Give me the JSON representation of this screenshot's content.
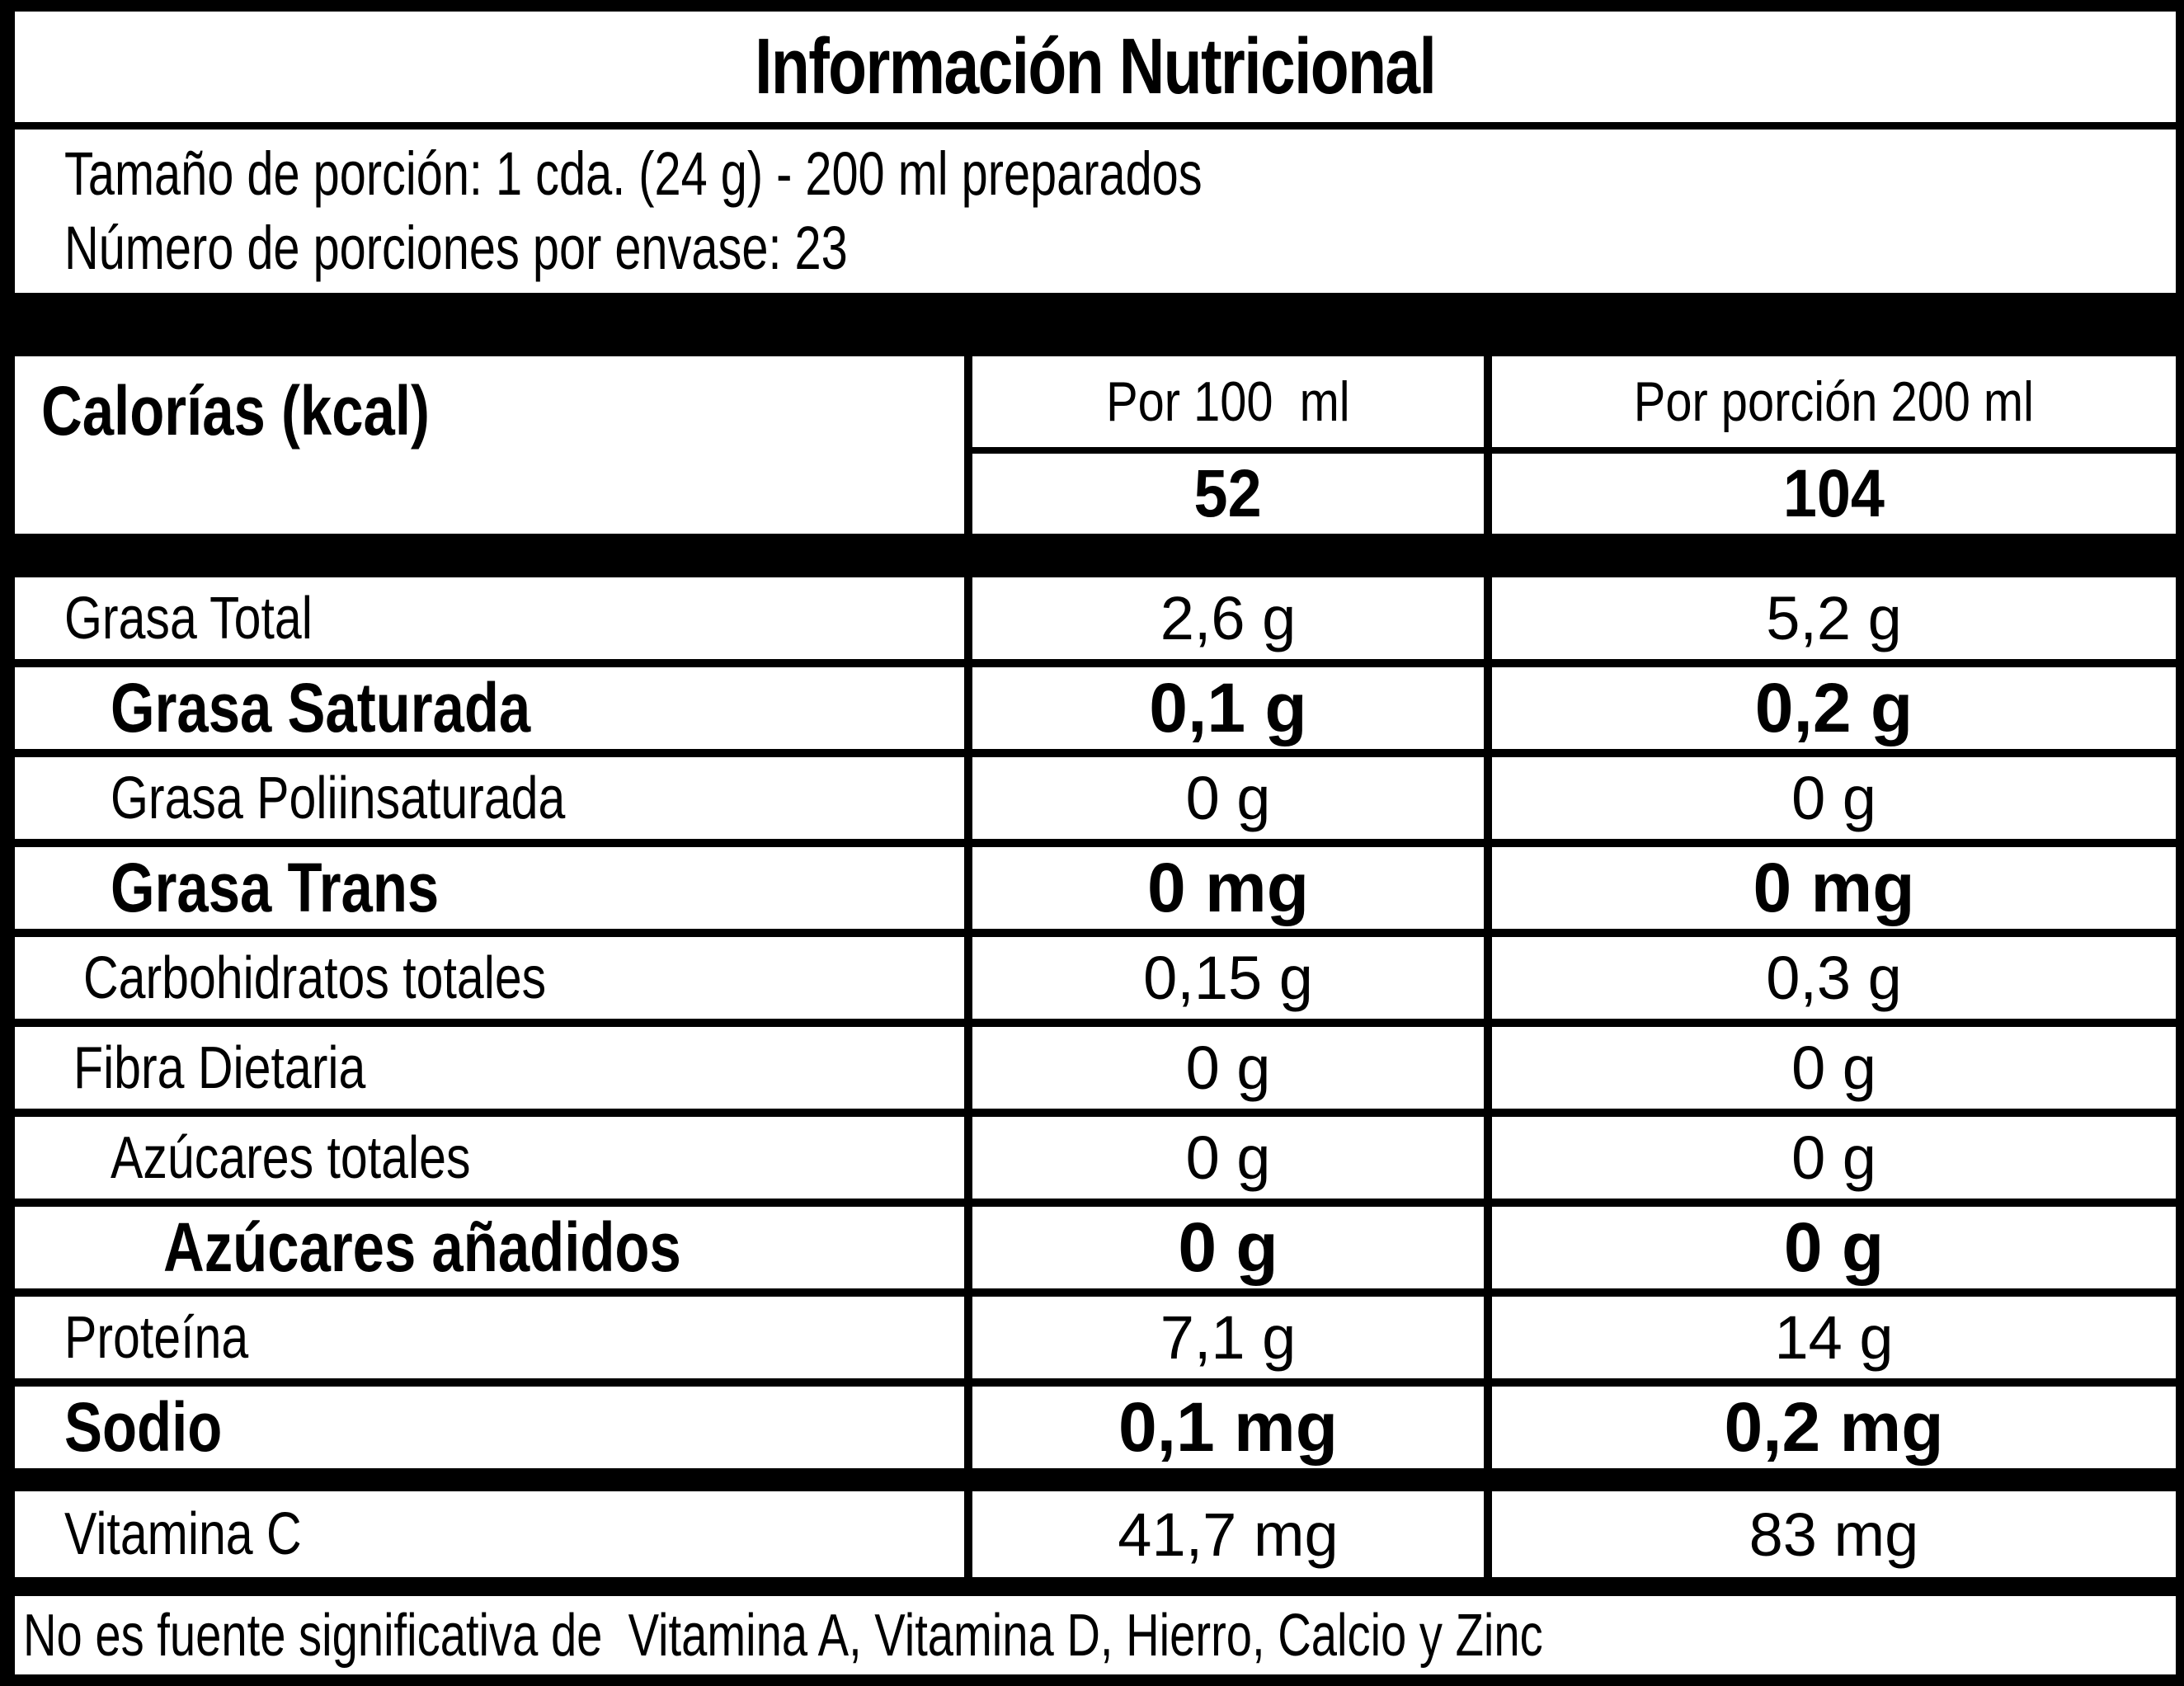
{
  "title": "Información Nutricional",
  "serving": {
    "size_line": "Tamaño de porción: 1 cda. (24 g) - 200 ml preparados",
    "count_line": "Número de porciones por envase: 23"
  },
  "calories": {
    "label": "Calorías (kcal)",
    "col_per100_header": "Por 100  ml",
    "col_per200_header": "Por porción 200 ml",
    "per100": "52",
    "per200": "104"
  },
  "nutrients": [
    {
      "label": "Grasa Total",
      "per100": "2,6 g",
      "per200": "5,2 g"
    },
    {
      "label": "Grasa Saturada",
      "per100": "0,1 g",
      "per200": "0,2 g"
    },
    {
      "label": "Grasa Poliinsaturada",
      "per100": "0 g",
      "per200": "0 g"
    },
    {
      "label": "Grasa Trans",
      "per100": "0 mg",
      "per200": "0 mg"
    },
    {
      "label": "Carbohidratos totales",
      "per100": "0,15 g",
      "per200": "0,3 g"
    },
    {
      "label": "Fibra Dietaria",
      "per100": "0 g",
      "per200": "0 g"
    },
    {
      "label": "Azúcares totales",
      "per100": "0 g",
      "per200": "0 g"
    },
    {
      "label": "Azúcares añadidos",
      "per100": "0 g",
      "per200": "0 g"
    },
    {
      "label": "Proteína",
      "per100": "7,1 g",
      "per200": "14 g"
    },
    {
      "label": "Sodio",
      "per100": "0,1 mg",
      "per200": "0,2 mg"
    }
  ],
  "vitamins": [
    {
      "label": "Vitamina C",
      "per100": "41,7 mg",
      "per200": "83 mg"
    }
  ],
  "footer_note": "No es fuente significativa de  Vitamina A, Vitamina D, Hierro, Calcio y Zinc",
  "colors": {
    "border": "#000000",
    "cell_background": "#ffffff",
    "text": "#000000"
  }
}
